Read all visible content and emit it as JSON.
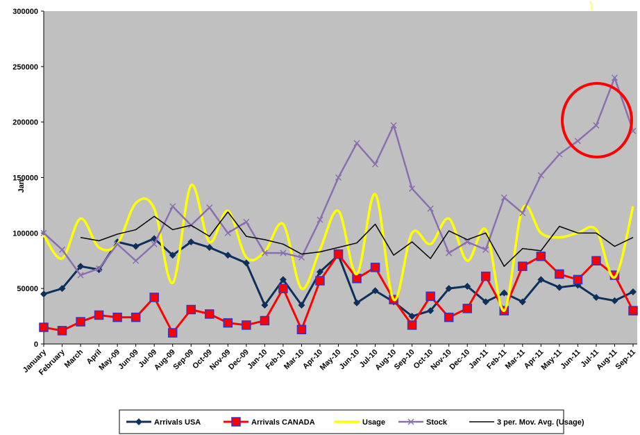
{
  "chart_data": {
    "type": "line",
    "y_label": "Jan",
    "categories": [
      "January",
      "February",
      "March",
      "April",
      "May-09",
      "Jun-09",
      "Jul-09",
      "Aug-09",
      "Sep-09",
      "Oct-09",
      "Nov-09",
      "Dec-09",
      "Jan-10",
      "Feb-10",
      "Mar-10",
      "Apr-10",
      "May-10",
      "Jun-10",
      "Jul-10",
      "Aug-10",
      "Sep-10",
      "Oct-10",
      "Nov-10",
      "Dec-10",
      "Jan-11",
      "Feb-11",
      "Mar-11",
      "Apr-11",
      "May-11",
      "Jun-11",
      "Jul-11",
      "Aug-11",
      "Sep-11"
    ],
    "series": [
      {
        "name": "Arrivals USA",
        "color": "#0d2f5c",
        "marker": "diamond",
        "values": [
          45000,
          50000,
          70000,
          67000,
          92000,
          88000,
          95000,
          80000,
          92000,
          87000,
          80000,
          73000,
          35000,
          58000,
          35000,
          65000,
          80000,
          37000,
          48000,
          38000,
          25000,
          30000,
          50000,
          52000,
          38000,
          46000,
          38000,
          58000,
          51000,
          53000,
          42000,
          39000,
          47000
        ]
      },
      {
        "name": "Arrivals CANADA",
        "color": "#ff0000",
        "marker": "square",
        "values": [
          15000,
          12000,
          20000,
          26000,
          24000,
          24000,
          42000,
          10000,
          31000,
          27000,
          19000,
          17000,
          21000,
          50000,
          13000,
          57000,
          81000,
          59000,
          69000,
          40000,
          17000,
          43000,
          24000,
          32000,
          61000,
          30000,
          70000,
          79000,
          63000,
          58000,
          75000,
          62000,
          30000
        ]
      },
      {
        "name": "Usage",
        "color": "#ffff00",
        "marker": "none",
        "smooth": true,
        "values": [
          98000,
          77000,
          113000,
          87000,
          90000,
          127000,
          122000,
          55000,
          143000,
          92000,
          120000,
          78000,
          83000,
          108000,
          50000,
          85000,
          120000,
          63000,
          135000,
          40000,
          100000,
          90000,
          113000,
          75000,
          103000,
          30000,
          122000,
          100000,
          96000,
          100000,
          103000,
          60000,
          124000
        ]
      },
      {
        "name": "Stock",
        "color": "#8a6fb0",
        "marker": "x",
        "values": [
          100000,
          85000,
          62000,
          68000,
          90000,
          75000,
          90000,
          124000,
          107000,
          123000,
          100000,
          110000,
          82000,
          82000,
          78000,
          112000,
          150000,
          181000,
          162000,
          197000,
          140000,
          122000,
          82000,
          92000,
          85000,
          132000,
          118000,
          152000,
          171000,
          183000,
          197000,
          240000,
          192000
        ]
      },
      {
        "name": "3 per. Mov. Avg. (Usage)",
        "color": "#000000",
        "marker": "none",
        "values": [
          null,
          null,
          96000,
          93000,
          99000,
          103000,
          115000,
          103000,
          107000,
          97000,
          119000,
          97000,
          94000,
          90000,
          81000,
          83000,
          87000,
          91000,
          108000,
          80000,
          92000,
          77000,
          102000,
          94000,
          100000,
          70000,
          86000,
          84000,
          106000,
          100000,
          100000,
          88000,
          96000
        ]
      }
    ],
    "ylim": [
      0,
      300000
    ],
    "yticks": [
      0,
      50000,
      100000,
      150000,
      200000,
      250000,
      300000
    ],
    "grid": false,
    "legend": "bottom"
  }
}
